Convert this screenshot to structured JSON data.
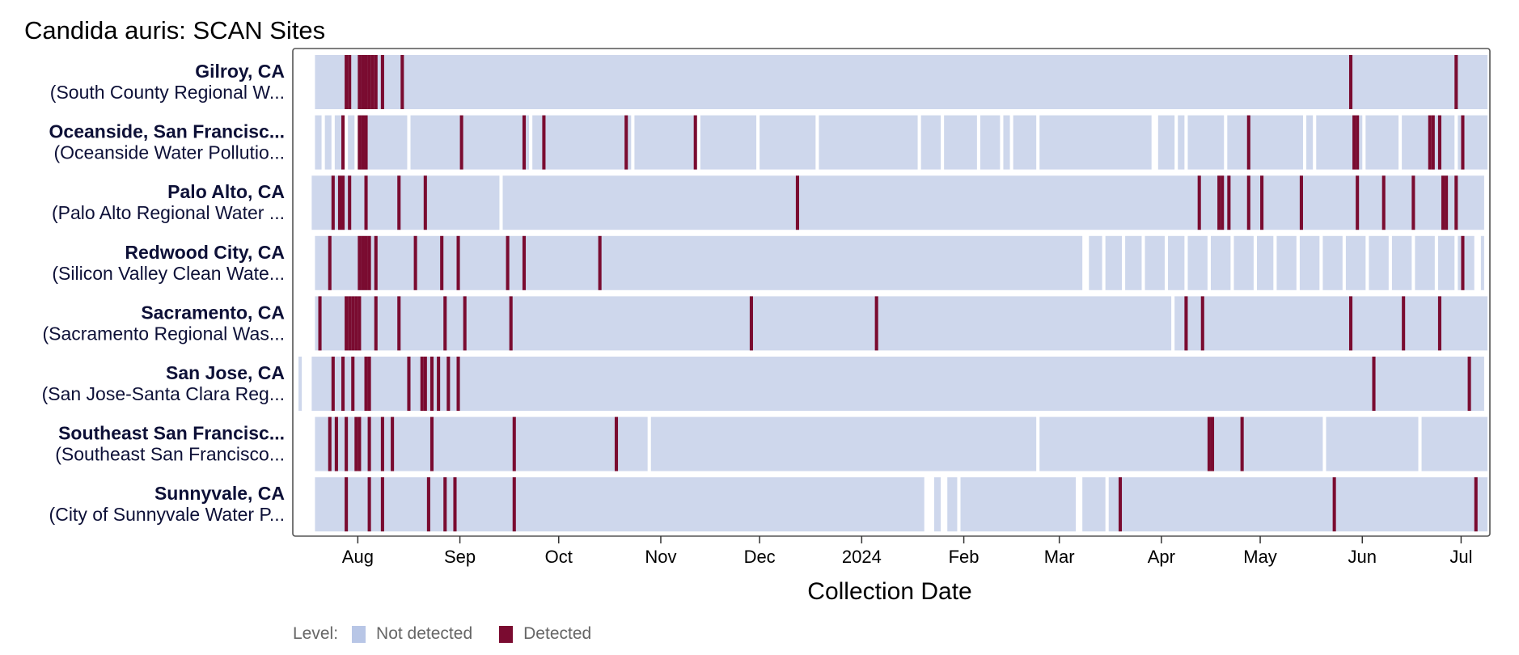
{
  "title": "Candida auris: SCAN Sites",
  "colors": {
    "not_detected": "#ced7ec",
    "detected": "#7a0b30",
    "plot_border": "#555555"
  },
  "legend": {
    "label": "Level:",
    "items": [
      {
        "name": "Not detected",
        "color": "#b8c6e6"
      },
      {
        "name": "Detected",
        "color": "#7a0b30"
      }
    ]
  },
  "chart_data": {
    "type": "heatmap",
    "title": "Candida auris: SCAN Sites",
    "xlabel": "Collection Date",
    "ylabel": "",
    "x_range": [
      "2023-07-13",
      "2024-07-09"
    ],
    "x_ticks": [
      {
        "date": "2023-08-01",
        "label": "Aug"
      },
      {
        "date": "2023-09-01",
        "label": "Sep"
      },
      {
        "date": "2023-10-01",
        "label": "Oct"
      },
      {
        "date": "2023-11-01",
        "label": "Nov"
      },
      {
        "date": "2023-12-01",
        "label": "Dec"
      },
      {
        "date": "2024-01-01",
        "label": "2024"
      },
      {
        "date": "2024-02-01",
        "label": "Feb"
      },
      {
        "date": "2024-03-01",
        "label": "Mar"
      },
      {
        "date": "2024-04-01",
        "label": "Apr"
      },
      {
        "date": "2024-05-01",
        "label": "May"
      },
      {
        "date": "2024-06-01",
        "label": "Jun"
      },
      {
        "date": "2024-07-01",
        "label": "Jul"
      }
    ],
    "legend_placement": "bottom-left",
    "grid": false,
    "sites": [
      {
        "name": "Gilroy, CA",
        "subtitle": "(South County Regional W...",
        "sampled": [
          [
            "2023-07-19",
            "2024-07-08"
          ]
        ],
        "detected": [
          "2023-07-28",
          "2023-07-29",
          "2023-08-01",
          "2023-08-02",
          "2023-08-03",
          "2023-08-04",
          "2023-08-05",
          "2023-08-06",
          "2023-08-08",
          "2023-08-14",
          "2024-05-28",
          "2024-06-29"
        ]
      },
      {
        "name": "Oceanside, San Francisc...",
        "subtitle": "(Oceanside Water Pollutio...",
        "sampled": [
          [
            "2023-07-19",
            "2023-07-20"
          ],
          [
            "2023-07-22",
            "2023-07-23"
          ],
          [
            "2023-07-25",
            "2023-07-27"
          ],
          [
            "2023-07-29",
            "2023-07-30"
          ],
          [
            "2023-08-01",
            "2023-08-15"
          ],
          [
            "2023-08-17",
            "2023-08-31"
          ],
          [
            "2023-09-02",
            "2023-09-21"
          ],
          [
            "2023-09-23",
            "2023-10-22"
          ],
          [
            "2023-10-24",
            "2023-11-11"
          ],
          [
            "2023-11-13",
            "2023-11-29"
          ],
          [
            "2023-12-01",
            "2023-12-17"
          ],
          [
            "2023-12-19",
            "2024-01-17"
          ],
          [
            "2024-01-19",
            "2024-01-24"
          ],
          [
            "2024-01-26",
            "2024-02-04"
          ],
          [
            "2024-02-06",
            "2024-02-11"
          ],
          [
            "2024-02-13",
            "2024-02-14"
          ],
          [
            "2024-02-16",
            "2024-02-22"
          ],
          [
            "2024-02-24",
            "2024-03-28"
          ],
          [
            "2024-03-31",
            "2024-04-04"
          ],
          [
            "2024-04-06",
            "2024-04-07"
          ],
          [
            "2024-04-09",
            "2024-04-19"
          ],
          [
            "2024-04-21",
            "2024-05-13"
          ],
          [
            "2024-05-15",
            "2024-05-16"
          ],
          [
            "2024-05-18",
            "2024-05-31"
          ],
          [
            "2024-06-02",
            "2024-06-11"
          ],
          [
            "2024-06-13",
            "2024-06-20"
          ],
          [
            "2024-06-22",
            "2024-06-28"
          ],
          [
            "2024-06-30",
            "2024-07-08"
          ]
        ],
        "detected": [
          "2023-07-27",
          "2023-08-01",
          "2023-08-02",
          "2023-08-03",
          "2023-09-01",
          "2023-09-20",
          "2023-09-26",
          "2023-10-21",
          "2023-11-11",
          "2024-04-27",
          "2024-05-29",
          "2024-05-30",
          "2024-06-21",
          "2024-06-22",
          "2024-06-24",
          "2024-07-01"
        ]
      },
      {
        "name": "Palo Alto, CA",
        "subtitle": "(Palo Alto Regional Water ...",
        "sampled": [
          [
            "2023-07-18",
            "2023-09-12"
          ],
          [
            "2023-09-14",
            "2024-07-07"
          ]
        ],
        "detected": [
          "2023-07-24",
          "2023-07-26",
          "2023-07-27",
          "2023-07-29",
          "2023-08-03",
          "2023-08-13",
          "2023-08-21",
          "2023-12-12",
          "2024-04-12",
          "2024-04-18",
          "2024-04-19",
          "2024-04-21",
          "2024-04-27",
          "2024-05-01",
          "2024-05-13",
          "2024-05-30",
          "2024-06-07",
          "2024-06-16",
          "2024-06-25",
          "2024-06-26",
          "2024-06-29"
        ]
      },
      {
        "name": "Redwood City, CA",
        "subtitle": "(Silicon Valley Clean Wate...",
        "sampled": [
          [
            "2023-07-19",
            "2024-03-07"
          ],
          [
            "2024-03-10",
            "2024-03-13"
          ],
          [
            "2024-03-15",
            "2024-03-19"
          ],
          [
            "2024-03-21",
            "2024-03-25"
          ],
          [
            "2024-03-27",
            "2024-04-01"
          ],
          [
            "2024-04-03",
            "2024-04-07"
          ],
          [
            "2024-04-09",
            "2024-04-14"
          ],
          [
            "2024-04-16",
            "2024-04-21"
          ],
          [
            "2024-04-23",
            "2024-04-28"
          ],
          [
            "2024-04-30",
            "2024-05-04"
          ],
          [
            "2024-05-06",
            "2024-05-11"
          ],
          [
            "2024-05-13",
            "2024-05-18"
          ],
          [
            "2024-05-20",
            "2024-05-25"
          ],
          [
            "2024-05-27",
            "2024-06-01"
          ],
          [
            "2024-06-03",
            "2024-06-08"
          ],
          [
            "2024-06-10",
            "2024-06-15"
          ],
          [
            "2024-06-17",
            "2024-06-22"
          ],
          [
            "2024-06-24",
            "2024-06-28"
          ],
          [
            "2024-06-30",
            "2024-07-04"
          ],
          [
            "2024-07-07",
            "2024-07-07"
          ]
        ],
        "detected": [
          "2023-07-23",
          "2023-08-01",
          "2023-08-02",
          "2023-08-03",
          "2023-08-04",
          "2023-08-06",
          "2023-08-18",
          "2023-08-26",
          "2023-08-31",
          "2023-09-15",
          "2023-09-20",
          "2023-10-13",
          "2024-07-01"
        ]
      },
      {
        "name": "Sacramento, CA",
        "subtitle": "(Sacramento Regional Was...",
        "sampled": [
          [
            "2023-07-19",
            "2024-04-03"
          ],
          [
            "2024-04-05",
            "2024-07-08"
          ]
        ],
        "detected": [
          "2023-07-20",
          "2023-07-28",
          "2023-07-29",
          "2023-07-30",
          "2023-07-31",
          "2023-08-01",
          "2023-08-06",
          "2023-08-13",
          "2023-08-27",
          "2023-09-02",
          "2023-09-16",
          "2023-11-28",
          "2024-01-05",
          "2024-04-08",
          "2024-04-13",
          "2024-05-28",
          "2024-06-13",
          "2024-06-24"
        ]
      },
      {
        "name": "San Jose, CA",
        "subtitle": "(San Jose-Santa Clara Reg...",
        "sampled": [
          [
            "2023-07-14",
            "2023-07-14"
          ],
          [
            "2023-07-18",
            "2024-07-07"
          ]
        ],
        "detected": [
          "2023-07-24",
          "2023-07-27",
          "2023-07-30",
          "2023-08-03",
          "2023-08-04",
          "2023-08-16",
          "2023-08-20",
          "2023-08-21",
          "2023-08-23",
          "2023-08-25",
          "2023-08-28",
          "2023-08-31",
          "2024-06-04",
          "2024-07-03"
        ]
      },
      {
        "name": "Southeast San Francisc...",
        "subtitle": "(Southeast San Francisco...",
        "sampled": [
          [
            "2023-07-19",
            "2023-10-27"
          ],
          [
            "2023-10-29",
            "2024-02-22"
          ],
          [
            "2024-02-24",
            "2024-05-19"
          ],
          [
            "2024-05-21",
            "2024-06-17"
          ],
          [
            "2024-06-19",
            "2024-07-08"
          ]
        ],
        "detected": [
          "2023-07-23",
          "2023-07-25",
          "2023-07-28",
          "2023-07-31",
          "2023-08-01",
          "2023-08-04",
          "2023-08-08",
          "2023-08-11",
          "2023-08-23",
          "2023-09-17",
          "2023-10-18",
          "2024-04-15",
          "2024-04-16",
          "2024-04-25"
        ]
      },
      {
        "name": "Sunnyvale, CA",
        "subtitle": "(City of Sunnyvale Water P...",
        "sampled": [
          [
            "2023-07-19",
            "2024-01-19"
          ],
          [
            "2024-01-23",
            "2024-01-24"
          ],
          [
            "2024-01-27",
            "2024-01-29"
          ],
          [
            "2024-01-31",
            "2024-03-05"
          ],
          [
            "2024-03-08",
            "2024-03-14"
          ],
          [
            "2024-03-16",
            "2024-05-22"
          ],
          [
            "2024-05-24",
            "2024-07-08"
          ]
        ],
        "detected": [
          "2023-07-28",
          "2023-08-04",
          "2023-08-08",
          "2023-08-22",
          "2023-08-27",
          "2023-08-30",
          "2023-09-17",
          "2024-03-19",
          "2024-05-23",
          "2024-07-05"
        ]
      }
    ]
  }
}
